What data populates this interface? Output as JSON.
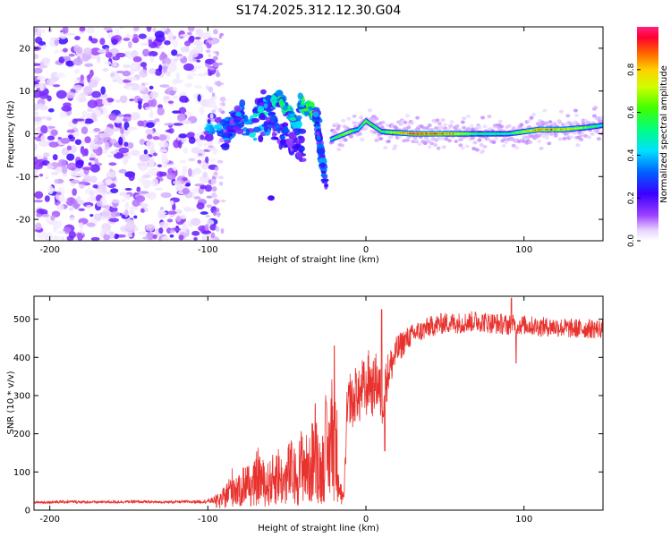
{
  "title": "S174.2025.312.12.30.G04",
  "chart_data": [
    {
      "type": "heatmap",
      "xlabel": "Height of straight line (km)",
      "ylabel": "Frequency (Hz)",
      "xlim": [
        -210,
        150
      ],
      "ylim": [
        -25,
        25
      ],
      "xticks": [
        -200,
        -100,
        0,
        100
      ],
      "yticks": [
        -20,
        -10,
        0,
        10,
        20
      ],
      "colorbar": {
        "label": "Normalized spectral amplitude",
        "range": [
          0,
          1
        ],
        "ticks": [
          "0.0",
          "0.2",
          "0.4",
          "0.6",
          "0.8"
        ],
        "tick_values": [
          0,
          0.2,
          0.4,
          0.6,
          0.8
        ]
      },
      "regions": [
        {
          "name": "noise",
          "x": [
            -210,
            -95
          ],
          "freq": [
            -25,
            25
          ],
          "amplitude": [
            0.02,
            0.18
          ]
        },
        {
          "name": "scattered",
          "x": [
            -100,
            -20
          ],
          "freq": [
            -16,
            10
          ],
          "amplitude": [
            0.1,
            0.5
          ]
        },
        {
          "name": "tone",
          "x": [
            -22,
            150
          ],
          "freq": [
            -1,
            3
          ],
          "amplitude": [
            0.3,
            1.0
          ]
        }
      ],
      "tone_track": [
        {
          "x": -20,
          "freq": -1,
          "amp": 0.55
        },
        {
          "x": -10,
          "freq": 0.5,
          "amp": 0.7
        },
        {
          "x": -5,
          "freq": 1,
          "amp": 0.45
        },
        {
          "x": 0,
          "freq": 3,
          "amp": 0.6
        },
        {
          "x": 10,
          "freq": 0.5,
          "amp": 0.55
        },
        {
          "x": 30,
          "freq": 0,
          "amp": 0.95
        },
        {
          "x": 50,
          "freq": 0,
          "amp": 0.9
        },
        {
          "x": 70,
          "freq": 0,
          "amp": 0.55
        },
        {
          "x": 90,
          "freq": 0,
          "amp": 0.5
        },
        {
          "x": 110,
          "freq": 1,
          "amp": 0.9
        },
        {
          "x": 125,
          "freq": 1,
          "amp": 0.8
        },
        {
          "x": 140,
          "freq": 1.5,
          "amp": 0.6
        },
        {
          "x": 150,
          "freq": 2,
          "amp": 0.5
        }
      ]
    },
    {
      "type": "line",
      "xlabel": "Height of straight line (km)",
      "ylabel": "SNR (10 * v/v)",
      "xlim": [
        -210,
        150
      ],
      "ylim": [
        0,
        560
      ],
      "xticks": [
        -200,
        -100,
        0,
        100
      ],
      "yticks": [
        0,
        100,
        200,
        300,
        400,
        500
      ],
      "series": [
        {
          "name": "SNR",
          "color": "#e8322e",
          "x": [
            -210,
            -190,
            -170,
            -150,
            -130,
            -110,
            -100,
            -92,
            -88,
            -84,
            -80,
            -76,
            -72,
            -68,
            -64,
            -60,
            -56,
            -52,
            -48,
            -44,
            -40,
            -36,
            -32,
            -28,
            -26,
            -24,
            -22,
            -20,
            -18,
            -16,
            -14,
            -12,
            -10,
            -8,
            -6,
            -4,
            -2,
            0,
            2,
            4,
            6,
            8,
            10,
            12,
            14,
            16,
            18,
            20,
            24,
            28,
            32,
            36,
            40,
            50,
            60,
            70,
            80,
            90,
            100,
            110,
            120,
            130,
            140,
            150
          ],
          "values": [
            20,
            22,
            21,
            22,
            21,
            22,
            23,
            30,
            50,
            80,
            60,
            95,
            70,
            115,
            80,
            90,
            120,
            85,
            130,
            100,
            160,
            120,
            200,
            110,
            230,
            150,
            260,
            210,
            180,
            60,
            25,
            240,
            300,
            270,
            320,
            290,
            330,
            305,
            350,
            310,
            340,
            330,
            280,
            320,
            360,
            380,
            400,
            420,
            440,
            455,
            465,
            470,
            480,
            490,
            490,
            495,
            490,
            485,
            485,
            480,
            480,
            475,
            475,
            475
          ],
          "noise_scale": [
            3,
            4,
            3,
            4,
            3,
            4,
            5,
            15,
            40,
            55,
            50,
            60,
            55,
            70,
            60,
            65,
            75,
            65,
            80,
            75,
            90,
            80,
            100,
            90,
            110,
            100,
            120,
            110,
            90,
            25,
            10,
            70,
            70,
            65,
            75,
            70,
            75,
            70,
            80,
            70,
            75,
            75,
            70,
            70,
            55,
            50,
            45,
            40,
            35,
            30,
            28,
            28,
            28,
            28,
            28,
            28,
            28,
            28,
            26,
            26,
            26,
            26,
            26,
            26
          ]
        }
      ],
      "spikes": [
        {
          "x": -20,
          "value": 430
        },
        {
          "x": 10,
          "value": 525
        },
        {
          "x": 92,
          "value": 555
        },
        {
          "x": 95,
          "value": 385
        },
        {
          "x": 12,
          "value": 155
        }
      ]
    }
  ]
}
